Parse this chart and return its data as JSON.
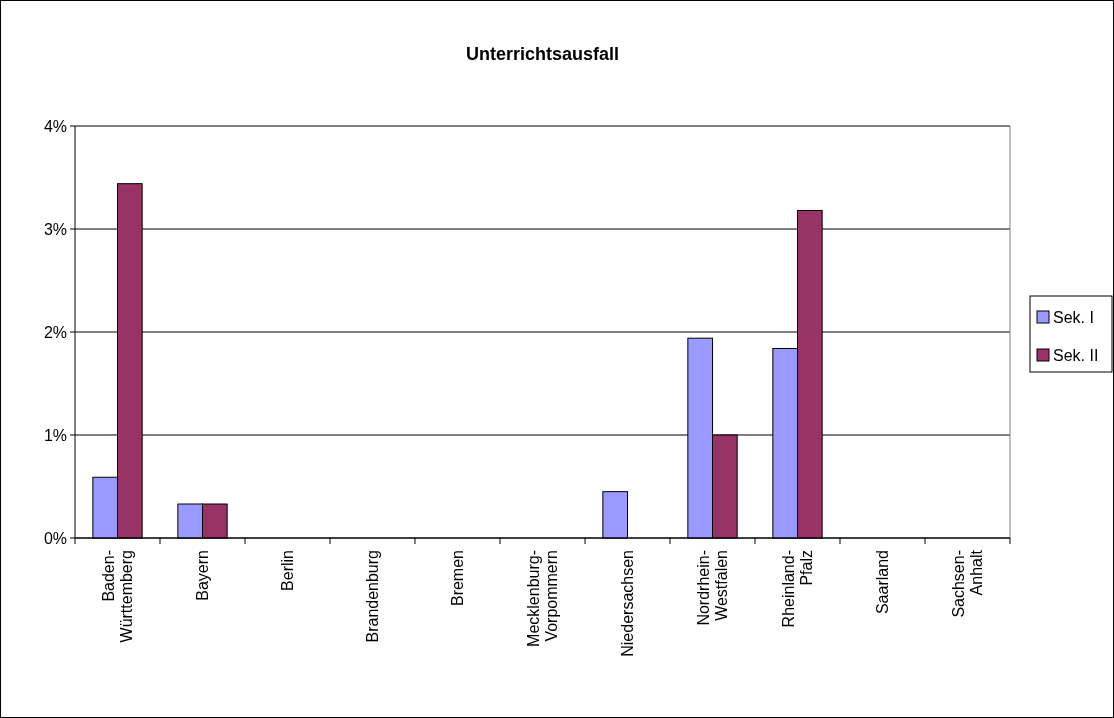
{
  "chart_data": {
    "type": "bar",
    "title": "Unterrichtsausfall",
    "categories": [
      "Baden-Württemberg",
      "Bayern",
      "Berlin",
      "Brandenburg",
      "Bremen",
      "Mecklenburg-Vorpommern",
      "Niedersachsen",
      "Nordrhein-Westfalen",
      "Rheinland-Pfalz",
      "Saarland",
      "Sachsen-Anhalt"
    ],
    "series": [
      {
        "name": "Sek. I",
        "color": "#9999ff",
        "values": [
          0.59,
          0.33,
          0,
          0,
          0,
          0,
          0.45,
          1.94,
          1.84,
          0,
          0
        ]
      },
      {
        "name": "Sek. II",
        "color": "#993366",
        "values": [
          3.44,
          0.33,
          0,
          0,
          0,
          0,
          0,
          1.0,
          3.18,
          0,
          0
        ]
      }
    ],
    "ylim": [
      0,
      4
    ],
    "yticks": [
      {
        "value": 0,
        "label": "0%"
      },
      {
        "value": 1,
        "label": "1%"
      },
      {
        "value": 2,
        "label": "2%"
      },
      {
        "value": 3,
        "label": "3%"
      },
      {
        "value": 4,
        "label": "4%"
      }
    ],
    "grid": "y",
    "legend": "right"
  }
}
